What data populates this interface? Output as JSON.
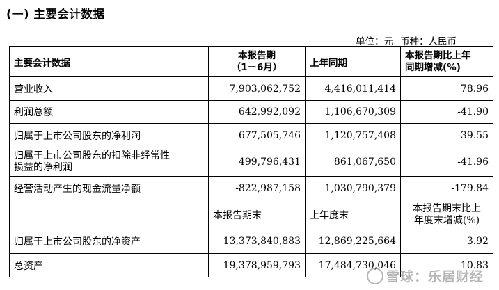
{
  "title": "(一) 主要会计数据",
  "unit_line": {
    "unit_label": "单位：元",
    "currency_label": "币种：人民币"
  },
  "header1": {
    "c1": "主要会计数据",
    "c2_line1": "本报告期",
    "c2_line2": "（1－6月）",
    "c3": "上年同期",
    "c4_line1": "本报告期比上年",
    "c4_line2": "同期增减(%)"
  },
  "rows1": [
    {
      "label": "营业收入",
      "current": "7,903,062,752",
      "prior": "4,416,011,414",
      "change": "78.96"
    },
    {
      "label": "利润总额",
      "current": "642,992,092",
      "prior": "1,106,670,309",
      "change": "-41.90"
    },
    {
      "label": "归属于上市公司股东的净利润",
      "current": "677,505,746",
      "prior": "1,120,757,408",
      "change": "-39.55"
    },
    {
      "label_line1": "归属于上市公司股东的扣除非经常性",
      "label_line2": "损益的净利润",
      "current": "499,796,431",
      "prior": "861,067,650",
      "change": "-41.96"
    },
    {
      "label": "经营活动产生的现金流量净额",
      "current": "-822,987,158",
      "prior": "1,030,790,379",
      "change": "-179.84"
    }
  ],
  "header2": {
    "c2": "本报告期末",
    "c3": "上年度末",
    "c4_line1": "本报告期末比上",
    "c4_line2": "年度末增减(%)"
  },
  "rows2": [
    {
      "label": "归属于上市公司股东的净资产",
      "current": "13,373,840,883",
      "prior": "12,869,225,664",
      "change": "3.92"
    },
    {
      "label": "总资产",
      "current": "19,378,959,793",
      "prior": "17,484,730,046",
      "change": "10.83"
    }
  ],
  "watermark": "雪球：乐居财经"
}
